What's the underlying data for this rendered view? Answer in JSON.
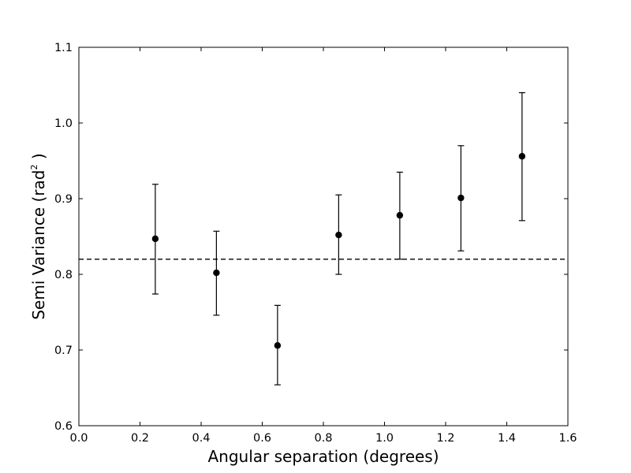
{
  "chart_data": {
    "type": "scatter",
    "xlabel": "Angular separation (degrees)",
    "ylabel_main": "Semi Variance (rad",
    "ylabel_sup": "2",
    "ylabel_end": " )",
    "xlim": [
      0.0,
      1.6
    ],
    "ylim": [
      0.6,
      1.1
    ],
    "xticks": [
      0.0,
      0.2,
      0.4,
      0.6,
      0.8,
      1.0,
      1.2,
      1.4,
      1.6
    ],
    "xtick_labels": [
      "0.0",
      "0.2",
      "0.4",
      "0.6",
      "0.8",
      "1.0",
      "1.2",
      "1.4",
      "1.6"
    ],
    "yticks": [
      0.6,
      0.7,
      0.8,
      0.9,
      1.0,
      1.1
    ],
    "ytick_labels": [
      "0.6",
      "0.7",
      "0.8",
      "0.9",
      "1.0",
      "1.1"
    ],
    "grid": false,
    "reference_line": {
      "y": 0.82,
      "style": "dashed"
    },
    "marker_color": "#000000",
    "points": [
      {
        "x": 0.25,
        "y": 0.847,
        "err_low": 0.774,
        "err_high": 0.919
      },
      {
        "x": 0.45,
        "y": 0.802,
        "err_low": 0.746,
        "err_high": 0.857
      },
      {
        "x": 0.65,
        "y": 0.706,
        "err_low": 0.654,
        "err_high": 0.759
      },
      {
        "x": 0.85,
        "y": 0.852,
        "err_low": 0.8,
        "err_high": 0.905
      },
      {
        "x": 1.05,
        "y": 0.878,
        "err_low": 0.82,
        "err_high": 0.935
      },
      {
        "x": 1.25,
        "y": 0.901,
        "err_low": 0.831,
        "err_high": 0.97
      },
      {
        "x": 1.45,
        "y": 0.956,
        "err_low": 0.871,
        "err_high": 1.04
      }
    ]
  }
}
